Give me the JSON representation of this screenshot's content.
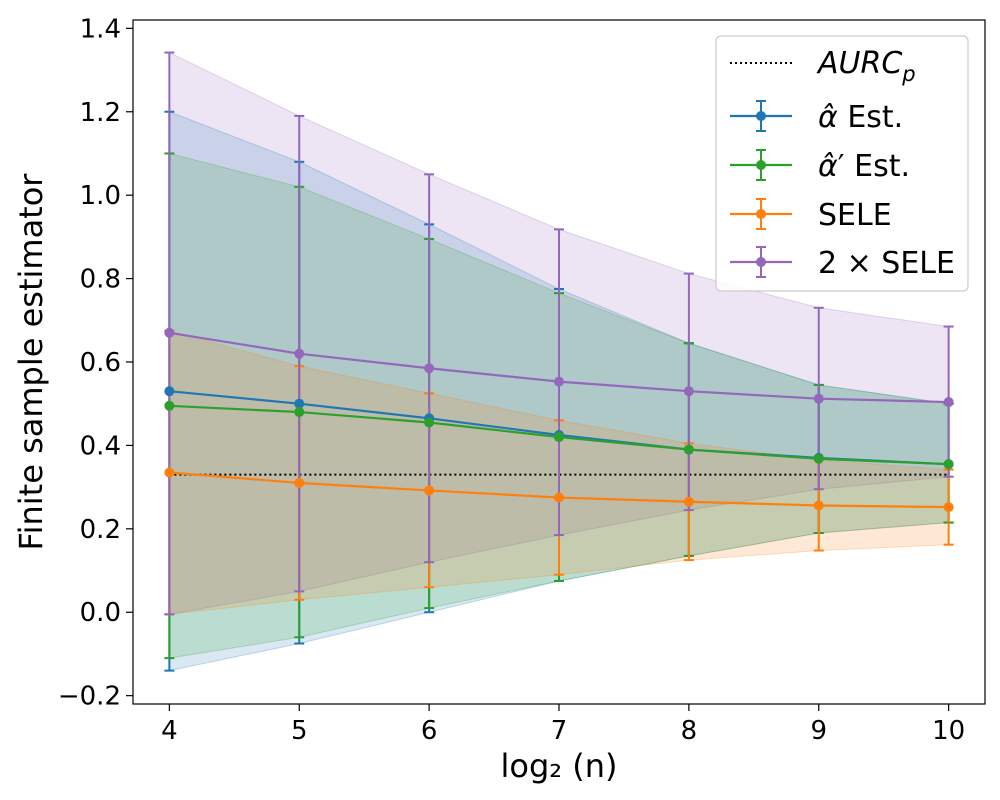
{
  "chart_data": {
    "type": "line",
    "title": "",
    "xlabel": "log₂ (n)",
    "ylabel": "Finite sample estimator",
    "x": [
      4,
      5,
      6,
      7,
      8,
      9,
      10
    ],
    "xlim": [
      3.72,
      10.28
    ],
    "ylim": [
      -0.22,
      1.42
    ],
    "xticks": [
      4,
      5,
      6,
      7,
      8,
      9,
      10
    ],
    "yticks": [
      -0.2,
      0.0,
      0.2,
      0.4,
      0.6,
      0.8,
      1.0,
      1.2,
      1.4
    ],
    "ytick_labels": [
      "−0.2",
      "0.0",
      "0.2",
      "0.4",
      "0.6",
      "0.8",
      "1.0",
      "1.2",
      "1.4"
    ],
    "grid": false,
    "legend_position": "top-right",
    "reference_line": {
      "name": "AURC_p",
      "label": "AURC",
      "label_sub": "p",
      "value": 0.33,
      "color": "#000000"
    },
    "series": [
      {
        "name": "α̂ Est.",
        "label_main": "α̂",
        "label_prime": "",
        "label_rest": " Est.",
        "color": "#1f77b4",
        "values": [
          0.53,
          0.5,
          0.465,
          0.425,
          0.39,
          0.37,
          0.355
        ],
        "lower": [
          -0.14,
          -0.075,
          0.0,
          0.075,
          0.135,
          0.19,
          0.215
        ],
        "upper": [
          1.2,
          1.08,
          0.93,
          0.775,
          0.645,
          0.545,
          0.5
        ]
      },
      {
        "name": "α̂′ Est.",
        "label_main": "α̂",
        "label_prime": "′",
        "label_rest": " Est.",
        "color": "#2ca02c",
        "values": [
          0.495,
          0.48,
          0.455,
          0.42,
          0.39,
          0.368,
          0.355
        ],
        "lower": [
          -0.11,
          -0.06,
          0.01,
          0.075,
          0.135,
          0.19,
          0.215
        ],
        "upper": [
          1.1,
          1.02,
          0.895,
          0.765,
          0.645,
          0.545,
          0.5
        ]
      },
      {
        "name": "SELE",
        "label_main": "SELE",
        "label_prime": "",
        "label_rest": "",
        "color": "#ff7f0e",
        "values": [
          0.335,
          0.31,
          0.292,
          0.275,
          0.265,
          0.256,
          0.252
        ],
        "lower": [
          -0.005,
          0.03,
          0.06,
          0.09,
          0.125,
          0.148,
          0.162
        ],
        "upper": [
          0.675,
          0.59,
          0.525,
          0.46,
          0.405,
          0.365,
          0.342
        ]
      },
      {
        "name": "2 × SELE",
        "label_main": "2 × SELE",
        "label_prime": "",
        "label_rest": "",
        "color": "#9467bd",
        "values": [
          0.67,
          0.62,
          0.585,
          0.553,
          0.53,
          0.512,
          0.504
        ],
        "lower": [
          -0.005,
          0.05,
          0.12,
          0.185,
          0.245,
          0.295,
          0.325
        ],
        "upper": [
          1.342,
          1.19,
          1.05,
          0.918,
          0.812,
          0.73,
          0.685
        ]
      }
    ]
  }
}
